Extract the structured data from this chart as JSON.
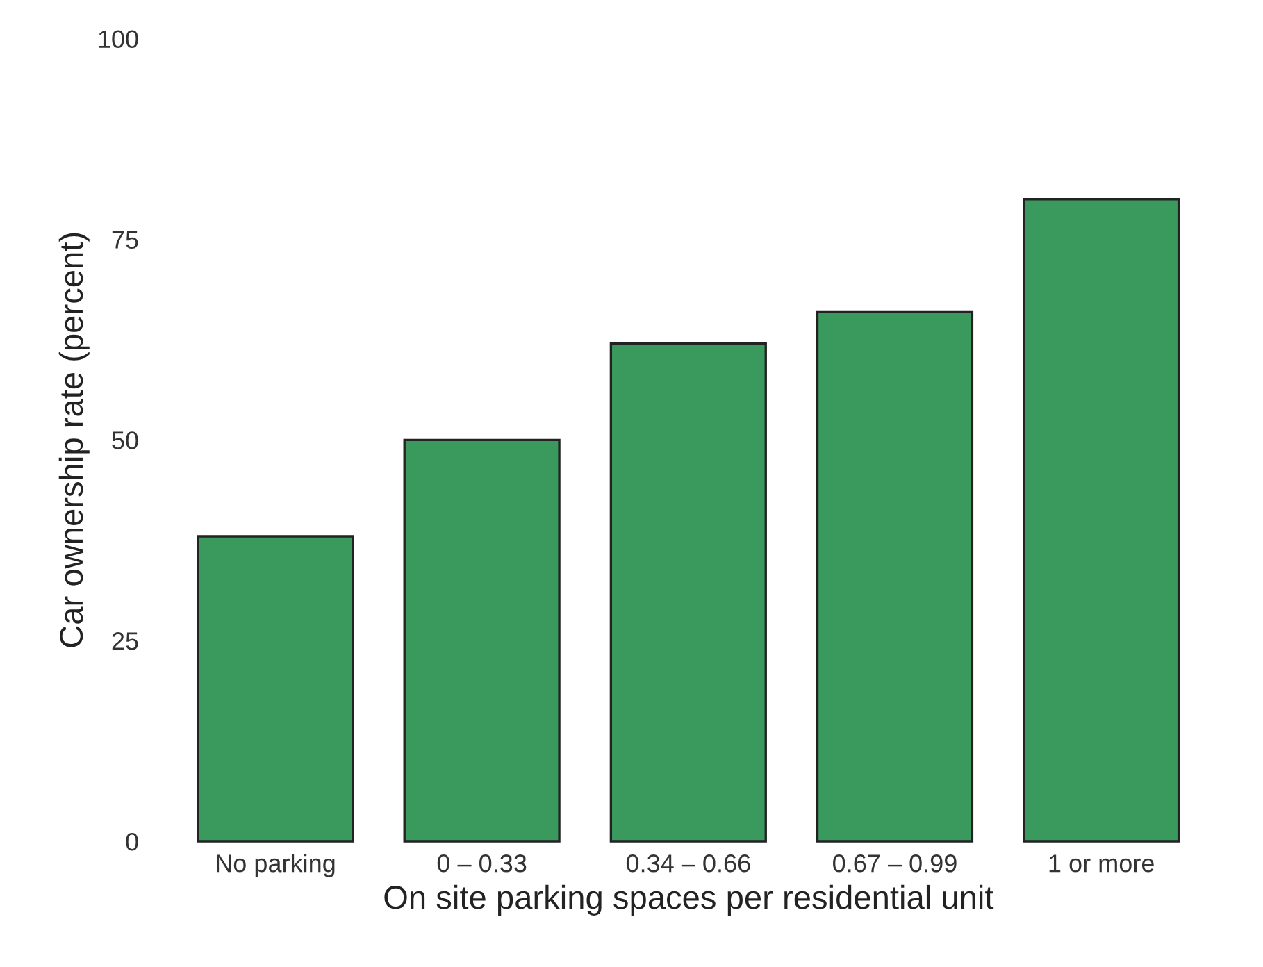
{
  "chart_data": {
    "type": "bar",
    "xlabel": "On site parking spaces per residential unit",
    "ylabel": "Car ownership rate (percent)",
    "categories": [
      "No parking",
      "0 – 0.33",
      "0.34 – 0.66",
      "0.67 – 0.99",
      "1 or more"
    ],
    "values": [
      38,
      50,
      62,
      66,
      80
    ],
    "color": "#3a9a5e",
    "ylim": [
      0,
      100
    ],
    "yticks": [
      0,
      25,
      50,
      75,
      100
    ],
    "grid": false
  }
}
